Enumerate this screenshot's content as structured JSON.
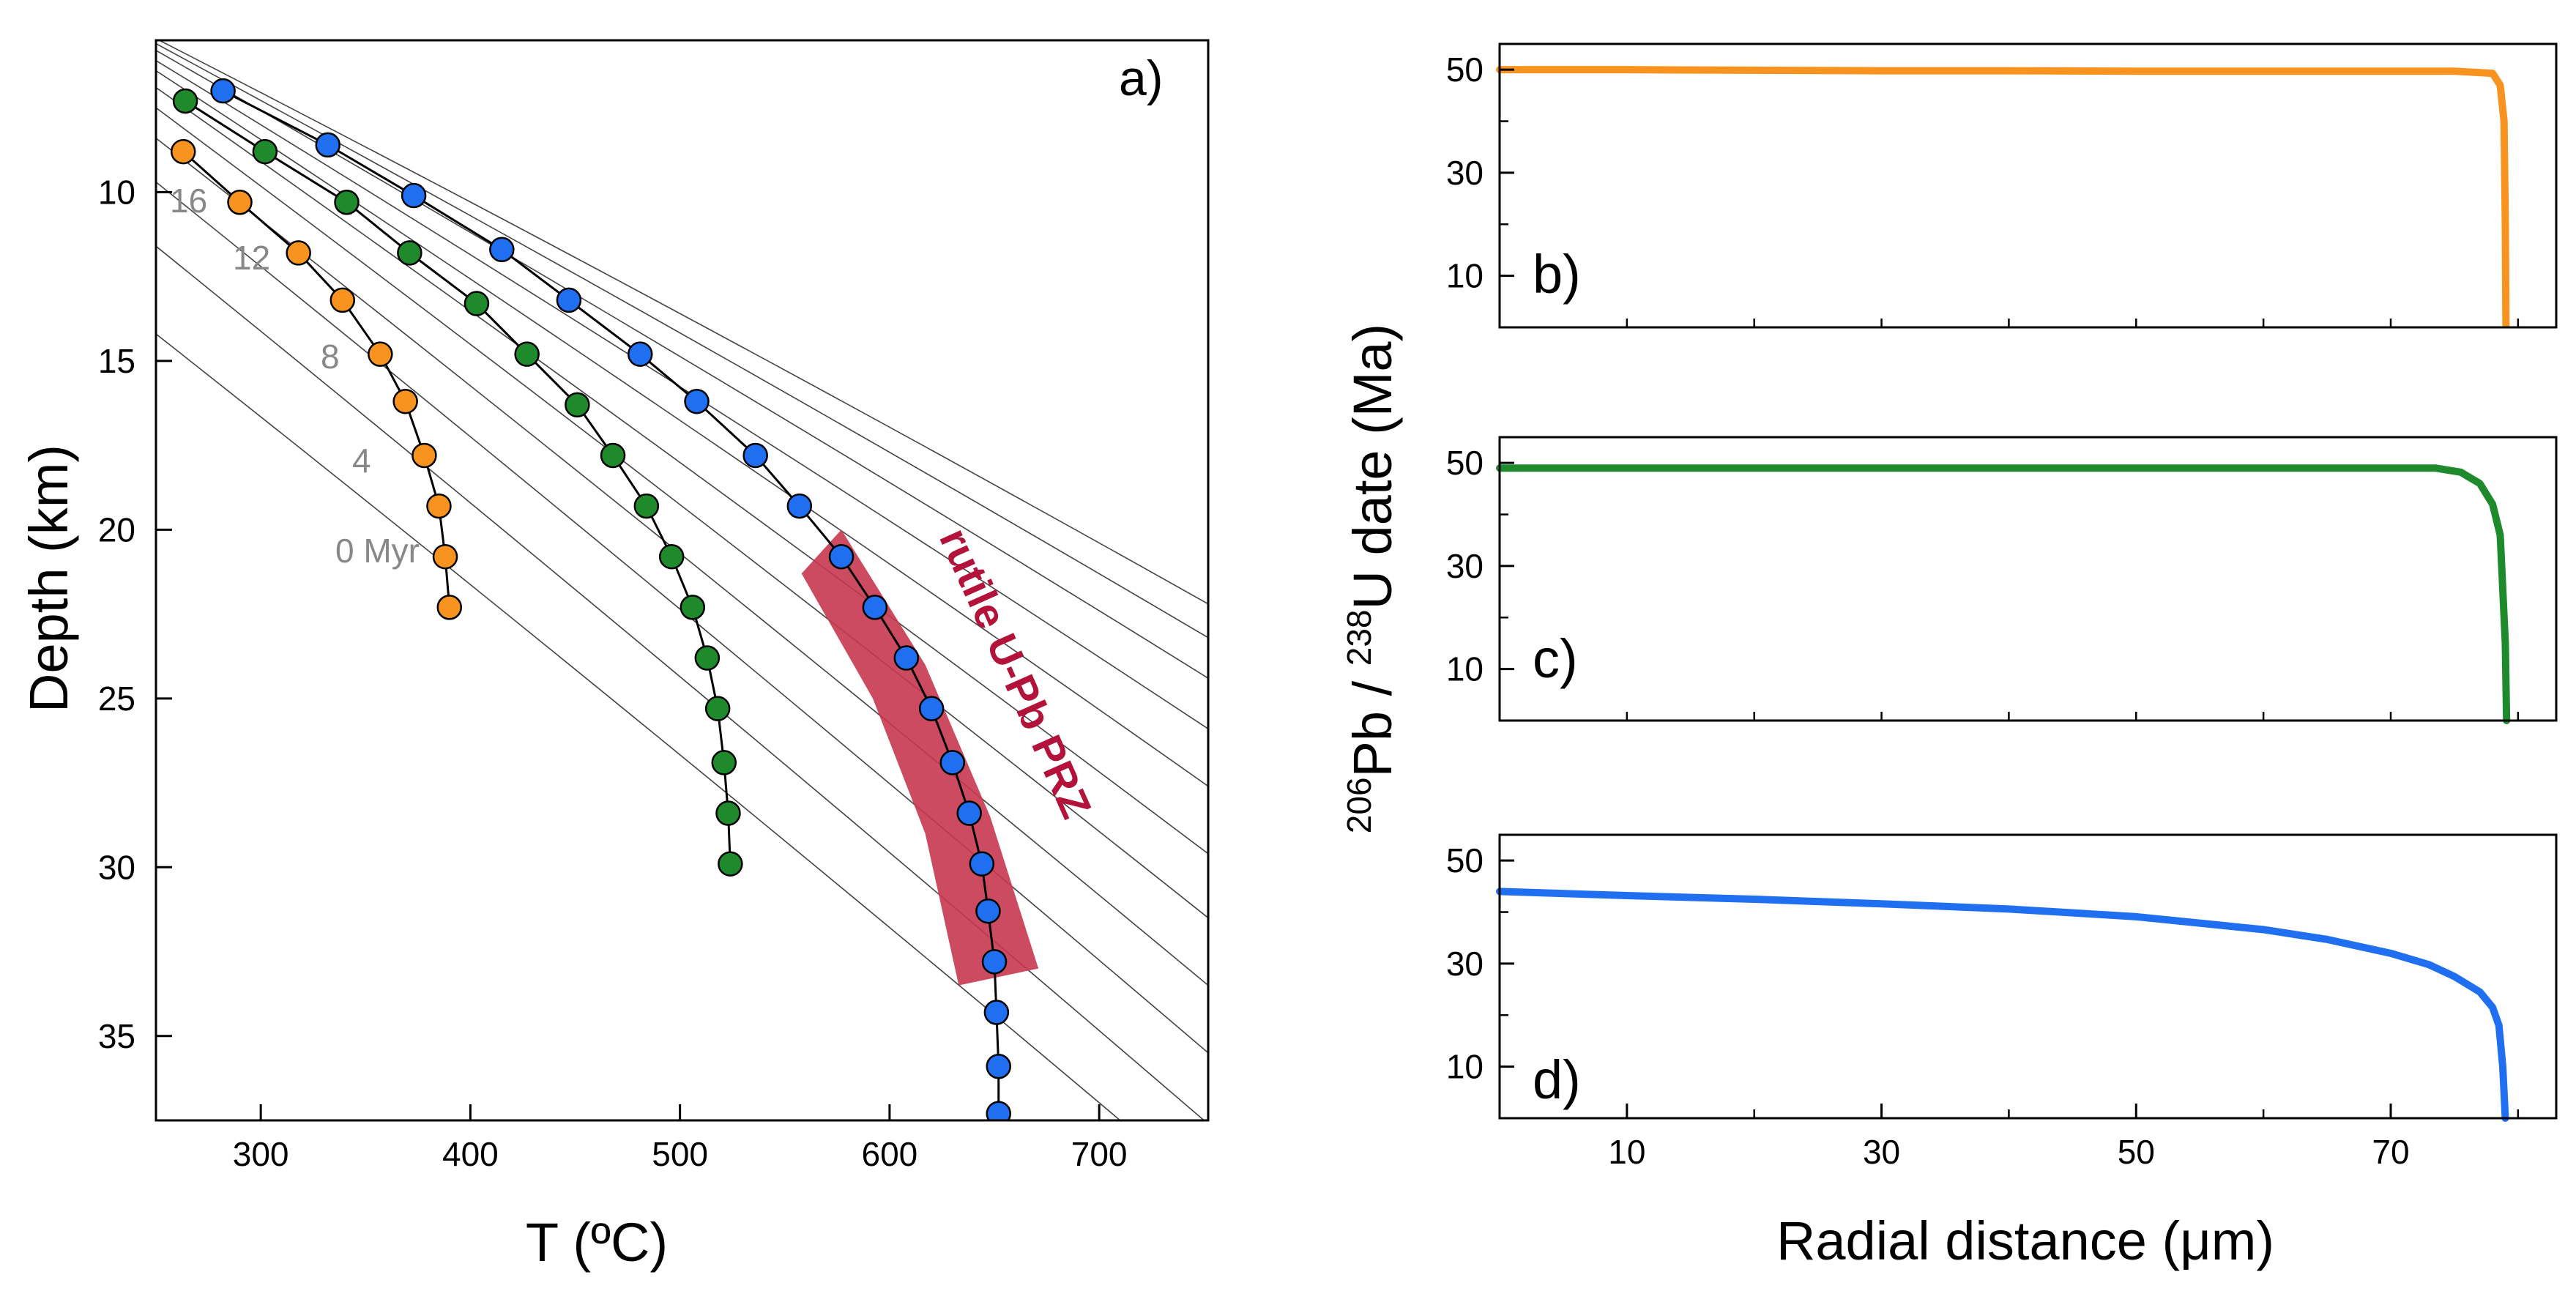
{
  "colors": {
    "orange": "#f7931e",
    "green": "#1f8a2c",
    "blue": "#1f6ff0",
    "prz": "#c8374f",
    "prz_text": "#b3123a",
    "geotherm": "#444444",
    "axis": "#000000",
    "isochron_label": "#888888"
  },
  "chart_data": [
    {
      "id": "a",
      "type": "line",
      "panel_label": "a)",
      "xlabel": "T (ºC)",
      "ylabel": "Depth (km)",
      "xlim": [
        250,
        752
      ],
      "ylim": [
        37.5,
        5.5
      ],
      "y_inverted": true,
      "xticks": [
        300,
        400,
        500,
        600,
        700
      ],
      "yticks": [
        10,
        15,
        20,
        25,
        30,
        35
      ],
      "grid": false,
      "isochron_labels": [
        "16",
        "12",
        "8",
        "4",
        "0 Myr"
      ],
      "region_label": "rutile U-Pb PRZ",
      "geotherms": [
        {
          "t0": 250,
          "y0": 14.2,
          "t1": 710,
          "y1": 37.5
        },
        {
          "t0": 250,
          "y0": 11.6,
          "t1": 750,
          "y1": 37.5
        },
        {
          "t0": 250,
          "y0": 9.7,
          "t1": 752,
          "y1": 35.5
        },
        {
          "t0": 250,
          "y0": 8.4,
          "t1": 752,
          "y1": 33.5
        },
        {
          "t0": 250,
          "y0": 7.5,
          "t1": 752,
          "y1": 31.5
        },
        {
          "t0": 250,
          "y0": 6.9,
          "t1": 752,
          "y1": 29.6
        },
        {
          "t0": 250,
          "y0": 6.4,
          "t1": 752,
          "y1": 27.6
        },
        {
          "t0": 250,
          "y0": 6.1,
          "t1": 752,
          "y1": 25.9
        },
        {
          "t0": 250,
          "y0": 5.8,
          "t1": 752,
          "y1": 24.4
        },
        {
          "t0": 250,
          "y0": 5.6,
          "t1": 752,
          "y1": 23.2
        },
        {
          "t0": 250,
          "y0": 5.45,
          "t1": 752,
          "y1": 22.2
        }
      ],
      "prz_band": [
        {
          "t": 558,
          "y": 21.3
        },
        {
          "t": 577,
          "y": 20.0
        },
        {
          "t": 617,
          "y": 24.0
        },
        {
          "t": 648,
          "y": 28.5
        },
        {
          "t": 671,
          "y": 33.0
        },
        {
          "t": 633,
          "y": 33.5
        },
        {
          "t": 617,
          "y": 29.0
        },
        {
          "t": 592,
          "y": 25.0
        }
      ],
      "series": [
        {
          "color": "orange",
          "points": [
            {
              "t": 263,
              "y": 8.8
            },
            {
              "t": 290,
              "y": 10.3
            },
            {
              "t": 318,
              "y": 11.8
            },
            {
              "t": 339,
              "y": 13.2
            },
            {
              "t": 357,
              "y": 14.8
            },
            {
              "t": 369,
              "y": 16.2
            },
            {
              "t": 378,
              "y": 17.8
            },
            {
              "t": 385,
              "y": 19.3
            },
            {
              "t": 388,
              "y": 20.8
            },
            {
              "t": 390,
              "y": 22.3
            }
          ]
        },
        {
          "color": "green",
          "points": [
            {
              "t": 264,
              "y": 7.3
            },
            {
              "t": 302,
              "y": 8.8
            },
            {
              "t": 341,
              "y": 10.3
            },
            {
              "t": 371,
              "y": 11.8
            },
            {
              "t": 403,
              "y": 13.3
            },
            {
              "t": 427,
              "y": 14.8
            },
            {
              "t": 451,
              "y": 16.3
            },
            {
              "t": 468,
              "y": 17.8
            },
            {
              "t": 484,
              "y": 19.3
            },
            {
              "t": 496,
              "y": 20.8
            },
            {
              "t": 506,
              "y": 22.3
            },
            {
              "t": 513,
              "y": 23.8
            },
            {
              "t": 518,
              "y": 25.3
            },
            {
              "t": 521,
              "y": 26.9
            },
            {
              "t": 523,
              "y": 28.4
            },
            {
              "t": 524,
              "y": 29.9
            }
          ]
        },
        {
          "color": "blue",
          "points": [
            {
              "t": 282,
              "y": 7.0
            },
            {
              "t": 332,
              "y": 8.6
            },
            {
              "t": 373,
              "y": 10.1
            },
            {
              "t": 415,
              "y": 11.7
            },
            {
              "t": 447,
              "y": 13.2
            },
            {
              "t": 481,
              "y": 14.8
            },
            {
              "t": 508,
              "y": 16.2
            },
            {
              "t": 536,
              "y": 17.8
            },
            {
              "t": 557,
              "y": 19.3
            },
            {
              "t": 577,
              "y": 20.8
            },
            {
              "t": 593,
              "y": 22.3
            },
            {
              "t": 608,
              "y": 23.8
            },
            {
              "t": 620,
              "y": 25.3
            },
            {
              "t": 630,
              "y": 26.9
            },
            {
              "t": 638,
              "y": 28.4
            },
            {
              "t": 644,
              "y": 29.9
            },
            {
              "t": 647,
              "y": 31.3
            },
            {
              "t": 650,
              "y": 32.8
            },
            {
              "t": 651,
              "y": 34.3
            },
            {
              "t": 652,
              "y": 35.9
            },
            {
              "t": 652,
              "y": 37.3
            }
          ]
        }
      ]
    },
    {
      "id": "b",
      "type": "line",
      "panel_label": "b)",
      "color": "orange",
      "xlim": [
        0,
        83
      ],
      "ylim": [
        0,
        55
      ],
      "yticks": [
        10,
        30,
        50
      ],
      "xticks_minor": [
        10,
        20,
        30,
        40,
        50,
        60,
        70,
        80
      ],
      "yticks_minor": [
        20,
        40
      ],
      "x": [
        0,
        10,
        20,
        30,
        40,
        50,
        60,
        70,
        75,
        78,
        78.6,
        78.9,
        79.0,
        79.05
      ],
      "y": [
        50,
        50,
        49.9,
        49.8,
        49.8,
        49.7,
        49.7,
        49.7,
        49.7,
        49.3,
        47.0,
        40.0,
        20.0,
        0.5
      ]
    },
    {
      "id": "c",
      "type": "line",
      "panel_label": "c)",
      "color": "green",
      "xlim": [
        0,
        83
      ],
      "ylim": [
        0,
        55
      ],
      "yticks": [
        10,
        30,
        50
      ],
      "xticks_minor": [
        10,
        20,
        30,
        40,
        50,
        60,
        70,
        80
      ],
      "yticks_minor": [
        20,
        40
      ],
      "x": [
        0,
        10,
        30,
        50,
        70,
        73.5,
        75.5,
        77.0,
        78.0,
        78.6,
        79.0,
        79.1
      ],
      "y": [
        49,
        49,
        49,
        49,
        49,
        49,
        48.2,
        46.0,
        42.0,
        36.0,
        15.0,
        0
      ]
    },
    {
      "id": "d",
      "type": "line",
      "panel_label": "d)",
      "color": "blue",
      "xlabel": "Radial distance (μm)",
      "xlim": [
        0,
        83
      ],
      "ylim": [
        0,
        55
      ],
      "yticks": [
        10,
        30,
        50
      ],
      "xticks": [
        10,
        30,
        50,
        70
      ],
      "xticks_minor": [
        20,
        40,
        60,
        80
      ],
      "yticks_minor": [
        20,
        40
      ],
      "x": [
        0,
        10,
        20,
        30,
        40,
        50,
        60,
        65,
        70,
        73,
        75,
        77,
        78,
        78.5,
        78.8,
        79.0
      ],
      "y": [
        44,
        43.2,
        42.5,
        41.6,
        40.6,
        39.1,
        36.6,
        34.7,
        32.0,
        29.8,
        27.5,
        24.5,
        21.5,
        18.0,
        10.0,
        0
      ]
    }
  ],
  "shared_ylabel": {
    "pb_mass": "206",
    "pb_element": "Pb / ",
    "u_mass": "238",
    "u_rest": "U date (Ma)"
  }
}
